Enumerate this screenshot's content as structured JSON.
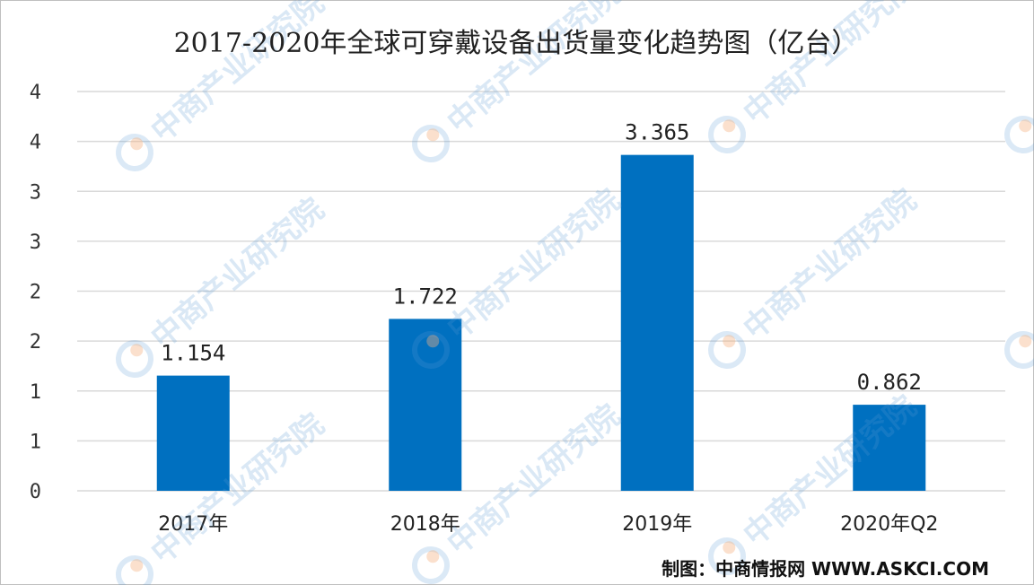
{
  "chart_data": {
    "type": "bar",
    "title": "2017-2020年全球可穿戴设备出货量变化趋势图（亿台）",
    "categories": [
      "2017年",
      "2018年",
      "2019年",
      "2020年Q2"
    ],
    "values": [
      1.154,
      1.722,
      3.365,
      0.862
    ],
    "data_labels": [
      "1.154",
      "1.722",
      "3.365",
      "0.862"
    ],
    "y_ticks": [
      0,
      0.5,
      1,
      1.5,
      2,
      2.5,
      3,
      3.5,
      4
    ],
    "y_tick_labels": [
      "0",
      "1",
      "1",
      "2",
      "2",
      "3",
      "3",
      "4",
      "4"
    ],
    "ylim": [
      0,
      4
    ],
    "grid": true,
    "legend": "none",
    "bar_color": "#0070c0",
    "grid_color": "#d9d9d9"
  },
  "source": "制图：中商情报网 WWW.ASKCI.COM",
  "watermark": {
    "text": "中商产业研究院",
    "color": "#5b9bd5"
  }
}
